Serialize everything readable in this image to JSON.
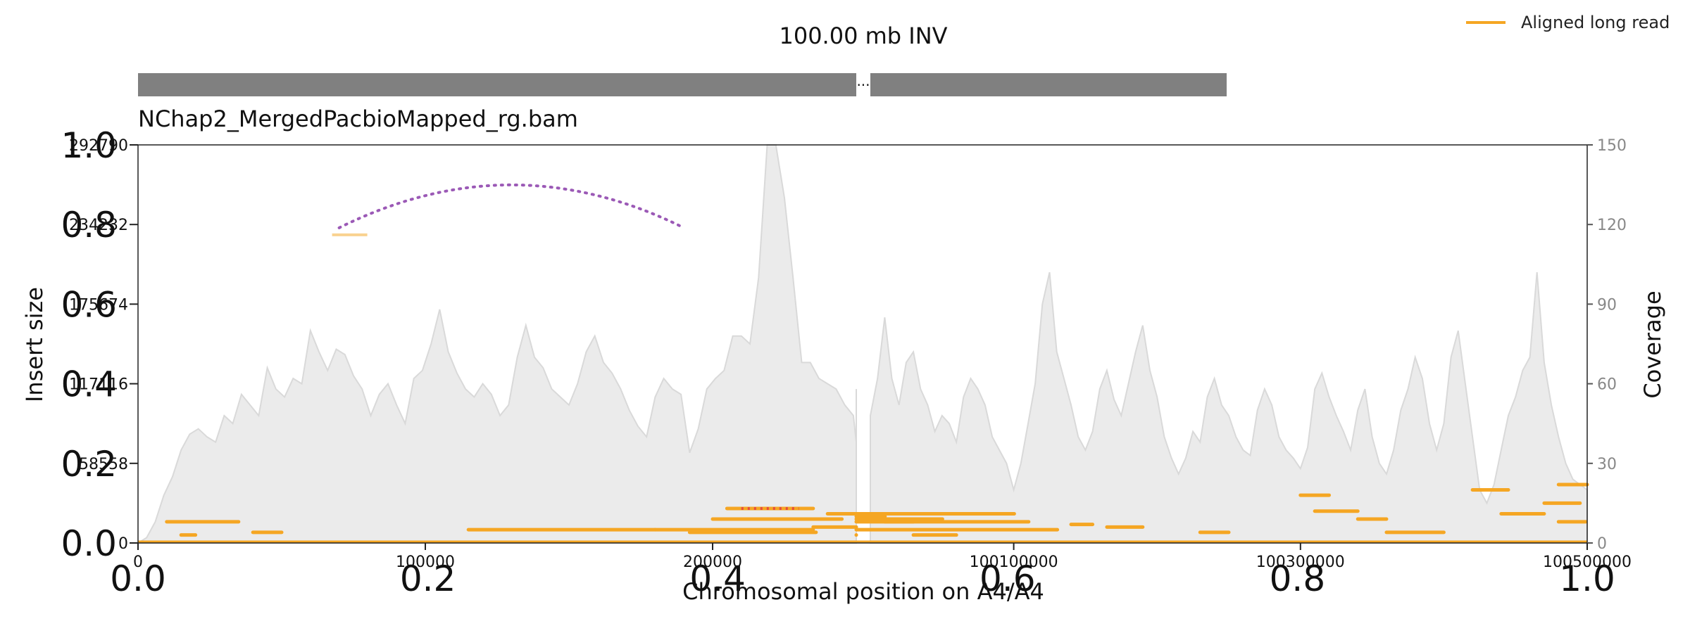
{
  "chart_data": {
    "type": "line",
    "title": "100.00 mb INV",
    "file_label": "NChap2_MergedPacbioMapped_rg.bam",
    "xlabel": "Chromosomal position on A4/A4",
    "ylabel_left": "Insert size",
    "ylabel_right": "Coverage",
    "legend": {
      "label": "Aligned long read",
      "color": "#f5a623",
      "placement": "top-right"
    },
    "x_ticks_left": [
      "0",
      "100000",
      "200000"
    ],
    "x_ticks_right": [
      "100100000",
      "100300000",
      "100500000"
    ],
    "insert_size_ticks": [
      "0",
      "58558",
      "117116",
      "175674",
      "234232",
      "292790"
    ],
    "insert_size_ylim": [
      0,
      292790
    ],
    "coverage_ticks": [
      "0",
      "30",
      "60",
      "90",
      "120",
      "150"
    ],
    "coverage_ylim": [
      0,
      150
    ],
    "overlay_axis": {
      "x_ticks": [
        "0.0",
        "0.2",
        "0.4",
        "0.6",
        "0.8",
        "1.0"
      ],
      "y_ticks": [
        "0.0",
        "0.2",
        "0.4",
        "0.6",
        "0.8",
        "1.0"
      ]
    },
    "segments": [
      {
        "name": "left",
        "start": 0,
        "end": 250000
      },
      {
        "name": "right",
        "start": 100000000,
        "end": 100500000
      }
    ],
    "break_marker": "...",
    "colors": {
      "coverage_fill": "#ebebeb",
      "coverage_line": "#d9d9d9",
      "read": "#f5a623",
      "inversion_arc": "#9b59b6",
      "ideogram": "#808080",
      "split_red": "#e74c3c"
    },
    "inversion_arc": {
      "start": 70000,
      "end": 190000,
      "insert_size": 238000
    },
    "coverage_left": [
      [
        0,
        0
      ],
      [
        3000,
        2
      ],
      [
        6000,
        8
      ],
      [
        9000,
        18
      ],
      [
        12000,
        25
      ],
      [
        15000,
        35
      ],
      [
        18000,
        41
      ],
      [
        21000,
        43
      ],
      [
        24000,
        40
      ],
      [
        27000,
        38
      ],
      [
        30000,
        48
      ],
      [
        33000,
        45
      ],
      [
        36000,
        56
      ],
      [
        39000,
        52
      ],
      [
        42000,
        48
      ],
      [
        45000,
        66
      ],
      [
        48000,
        58
      ],
      [
        51000,
        55
      ],
      [
        54000,
        62
      ],
      [
        57000,
        60
      ],
      [
        60000,
        80
      ],
      [
        63000,
        72
      ],
      [
        66000,
        65
      ],
      [
        69000,
        73
      ],
      [
        72000,
        71
      ],
      [
        75000,
        63
      ],
      [
        78000,
        58
      ],
      [
        81000,
        48
      ],
      [
        84000,
        56
      ],
      [
        87000,
        60
      ],
      [
        90000,
        52
      ],
      [
        93000,
        45
      ],
      [
        96000,
        62
      ],
      [
        99000,
        65
      ],
      [
        102000,
        75
      ],
      [
        105000,
        88
      ],
      [
        108000,
        72
      ],
      [
        111000,
        64
      ],
      [
        114000,
        58
      ],
      [
        117000,
        55
      ],
      [
        120000,
        60
      ],
      [
        123000,
        56
      ],
      [
        126000,
        48
      ],
      [
        129000,
        52
      ],
      [
        132000,
        70
      ],
      [
        135000,
        82
      ],
      [
        138000,
        70
      ],
      [
        141000,
        66
      ],
      [
        144000,
        58
      ],
      [
        147000,
        55
      ],
      [
        150000,
        52
      ],
      [
        153000,
        60
      ],
      [
        156000,
        72
      ],
      [
        159000,
        78
      ],
      [
        162000,
        68
      ],
      [
        165000,
        64
      ],
      [
        168000,
        58
      ],
      [
        171000,
        50
      ],
      [
        174000,
        44
      ],
      [
        177000,
        40
      ],
      [
        180000,
        55
      ],
      [
        183000,
        62
      ],
      [
        186000,
        58
      ],
      [
        189000,
        56
      ],
      [
        192000,
        34
      ],
      [
        195000,
        43
      ],
      [
        198000,
        58
      ],
      [
        201000,
        62
      ],
      [
        204000,
        65
      ],
      [
        207000,
        78
      ],
      [
        210000,
        78
      ],
      [
        213000,
        75
      ],
      [
        216000,
        100
      ],
      [
        219000,
        150
      ],
      [
        222000,
        150
      ],
      [
        225000,
        130
      ],
      [
        228000,
        100
      ],
      [
        231000,
        68
      ],
      [
        234000,
        68
      ],
      [
        237000,
        62
      ],
      [
        240000,
        60
      ],
      [
        243000,
        58
      ],
      [
        246000,
        52
      ],
      [
        249000,
        48
      ],
      [
        252000,
        38
      ],
      [
        255000,
        33
      ],
      [
        258000,
        28
      ],
      [
        261000,
        23
      ],
      [
        264000,
        18
      ],
      [
        267000,
        16
      ],
      [
        270000,
        20
      ],
      [
        273000,
        25
      ],
      [
        276000,
        32
      ],
      [
        279000,
        40
      ],
      [
        282000,
        45
      ],
      [
        285000,
        52
      ],
      [
        288000,
        43
      ],
      [
        291000,
        58
      ],
      [
        294000,
        45
      ],
      [
        297000,
        30
      ],
      [
        300000,
        40
      ],
      [
        303000,
        48
      ],
      [
        306000,
        42
      ],
      [
        309000,
        50
      ]
    ],
    "coverage_right": [
      [
        0,
        48
      ],
      [
        5000,
        62
      ],
      [
        10000,
        85
      ],
      [
        15000,
        62
      ],
      [
        20000,
        52
      ],
      [
        25000,
        68
      ],
      [
        30000,
        72
      ],
      [
        35000,
        58
      ],
      [
        40000,
        52
      ],
      [
        45000,
        42
      ],
      [
        50000,
        48
      ],
      [
        55000,
        45
      ],
      [
        60000,
        38
      ],
      [
        65000,
        55
      ],
      [
        70000,
        62
      ],
      [
        75000,
        58
      ],
      [
        80000,
        52
      ],
      [
        85000,
        40
      ],
      [
        90000,
        35
      ],
      [
        95000,
        30
      ],
      [
        100000,
        20
      ],
      [
        105000,
        30
      ],
      [
        110000,
        45
      ],
      [
        115000,
        60
      ],
      [
        120000,
        90
      ],
      [
        125000,
        102
      ],
      [
        130000,
        72
      ],
      [
        135000,
        62
      ],
      [
        140000,
        52
      ],
      [
        145000,
        40
      ],
      [
        150000,
        35
      ],
      [
        155000,
        42
      ],
      [
        160000,
        58
      ],
      [
        165000,
        65
      ],
      [
        170000,
        54
      ],
      [
        175000,
        48
      ],
      [
        180000,
        60
      ],
      [
        185000,
        72
      ],
      [
        190000,
        82
      ],
      [
        195000,
        65
      ],
      [
        200000,
        55
      ],
      [
        205000,
        40
      ],
      [
        210000,
        32
      ],
      [
        215000,
        26
      ],
      [
        220000,
        32
      ],
      [
        225000,
        42
      ],
      [
        230000,
        38
      ],
      [
        235000,
        55
      ],
      [
        240000,
        62
      ],
      [
        245000,
        52
      ],
      [
        250000,
        48
      ],
      [
        255000,
        40
      ],
      [
        260000,
        35
      ],
      [
        265000,
        33
      ],
      [
        270000,
        50
      ],
      [
        275000,
        58
      ],
      [
        280000,
        52
      ],
      [
        285000,
        40
      ],
      [
        290000,
        35
      ],
      [
        295000,
        32
      ],
      [
        300000,
        28
      ],
      [
        305000,
        36
      ],
      [
        310000,
        58
      ],
      [
        315000,
        64
      ],
      [
        320000,
        55
      ],
      [
        325000,
        48
      ],
      [
        330000,
        42
      ],
      [
        335000,
        35
      ],
      [
        340000,
        50
      ],
      [
        345000,
        58
      ],
      [
        350000,
        40
      ],
      [
        355000,
        30
      ],
      [
        360000,
        26
      ],
      [
        365000,
        35
      ],
      [
        370000,
        50
      ],
      [
        375000,
        58
      ],
      [
        380000,
        70
      ],
      [
        385000,
        62
      ],
      [
        390000,
        45
      ],
      [
        395000,
        35
      ],
      [
        400000,
        45
      ],
      [
        405000,
        70
      ],
      [
        410000,
        80
      ],
      [
        415000,
        60
      ],
      [
        420000,
        40
      ],
      [
        425000,
        20
      ],
      [
        430000,
        15
      ],
      [
        435000,
        22
      ],
      [
        440000,
        35
      ],
      [
        445000,
        48
      ],
      [
        450000,
        55
      ],
      [
        455000,
        65
      ],
      [
        460000,
        70
      ],
      [
        465000,
        102
      ],
      [
        470000,
        68
      ],
      [
        475000,
        52
      ],
      [
        480000,
        40
      ],
      [
        485000,
        30
      ],
      [
        490000,
        24
      ],
      [
        495000,
        22
      ],
      [
        500000,
        20
      ]
    ],
    "reads_left": [
      [
        10000,
        35000,
        8
      ],
      [
        40000,
        50000,
        4
      ],
      [
        115000,
        180000,
        5
      ],
      [
        180000,
        235000,
        5
      ],
      [
        192000,
        236000,
        4
      ],
      [
        235000,
        255000,
        6
      ],
      [
        200000,
        245000,
        9
      ],
      [
        205000,
        235000,
        13
      ],
      [
        240000,
        260000,
        11
      ],
      [
        260000,
        275000,
        10
      ],
      [
        275000,
        300000,
        11
      ],
      [
        280000,
        310000,
        9
      ],
      [
        305000,
        320000,
        11
      ],
      [
        310000,
        330000,
        8
      ],
      [
        320000,
        330000,
        5
      ],
      [
        15000,
        20000,
        3
      ],
      [
        250000,
        270000,
        3
      ]
    ],
    "reads_right": [
      [
        10000,
        30000,
        8
      ],
      [
        140000,
        155000,
        7
      ],
      [
        165000,
        190000,
        6
      ],
      [
        300000,
        320000,
        18
      ],
      [
        310000,
        340000,
        12
      ],
      [
        340000,
        360000,
        9
      ],
      [
        360000,
        400000,
        4
      ],
      [
        420000,
        445000,
        20
      ],
      [
        440000,
        470000,
        11
      ],
      [
        470000,
        495000,
        15
      ],
      [
        480000,
        499000,
        8
      ],
      [
        30000,
        60000,
        3
      ],
      [
        230000,
        250000,
        4
      ],
      [
        480000,
        500000,
        22
      ]
    ]
  }
}
